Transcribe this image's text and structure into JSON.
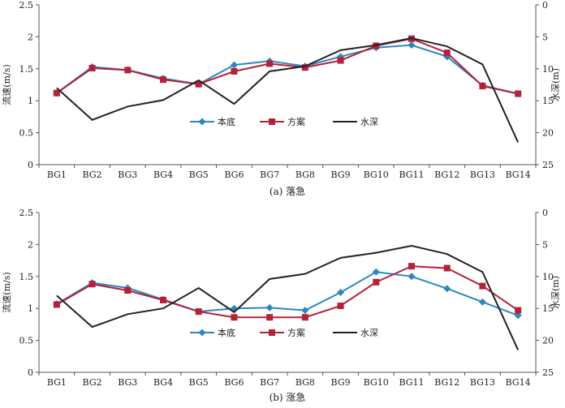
{
  "chart_data": [
    {
      "type": "line",
      "caption": "(a) 落急",
      "categories": [
        "BG1",
        "BG2",
        "BG3",
        "BG4",
        "BG5",
        "BG6",
        "BG7",
        "BG8",
        "BG9",
        "BG10",
        "BG11",
        "BG12",
        "BG13",
        "BG14"
      ],
      "ylabel": "流速(m/s)",
      "y2label": "水深(m)",
      "ylim": [
        0,
        2.5
      ],
      "yticks": [
        "0",
        "0.5",
        "1",
        "1.5",
        "2",
        "2.5"
      ],
      "y2lim": [
        0,
        25
      ],
      "y2_inverted": true,
      "y2ticks": [
        "0",
        "5",
        "10",
        "15",
        "20",
        "25"
      ],
      "grid": false,
      "legend_position": "bottom-center",
      "series": [
        {
          "name": "本底",
          "axis": "left",
          "color": "#2e86c1",
          "marker": "diamond",
          "values": [
            1.12,
            1.53,
            1.48,
            1.35,
            1.26,
            1.56,
            1.62,
            1.54,
            1.69,
            1.83,
            1.87,
            1.69,
            1.24,
            1.11
          ]
        },
        {
          "name": "方案",
          "axis": "left",
          "color": "#b5203a",
          "marker": "square",
          "values": [
            1.12,
            1.51,
            1.48,
            1.33,
            1.26,
            1.46,
            1.58,
            1.52,
            1.63,
            1.86,
            1.97,
            1.75,
            1.23,
            1.11
          ]
        },
        {
          "name": "水深",
          "axis": "right",
          "color": "#222222",
          "marker": "none",
          "values": [
            13.0,
            18.0,
            15.9,
            14.9,
            11.8,
            15.5,
            10.4,
            9.6,
            7.1,
            6.3,
            5.2,
            6.5,
            9.3,
            21.5
          ]
        }
      ]
    },
    {
      "type": "line",
      "caption": "(b) 涨急",
      "categories": [
        "BG1",
        "BG2",
        "BG3",
        "BG4",
        "BG5",
        "BG6",
        "BG7",
        "BG8",
        "BG9",
        "BG10",
        "BG11",
        "BG12",
        "BG13",
        "BG14"
      ],
      "ylabel": "流速(m/s)",
      "y2label": "水深(m)",
      "ylim": [
        0,
        2.5
      ],
      "yticks": [
        "0",
        "0.5",
        "1",
        "1.5",
        "2",
        "2.5"
      ],
      "y2lim": [
        0,
        25
      ],
      "y2_inverted": true,
      "y2ticks": [
        "0",
        "5",
        "10",
        "15",
        "20",
        "25"
      ],
      "grid": false,
      "legend_position": "bottom-center",
      "series": [
        {
          "name": "本底",
          "axis": "left",
          "color": "#2e86c1",
          "marker": "diamond",
          "values": [
            1.07,
            1.4,
            1.32,
            1.14,
            0.95,
            1.0,
            1.01,
            0.97,
            1.25,
            1.57,
            1.5,
            1.31,
            1.1,
            0.89
          ]
        },
        {
          "name": "方案",
          "axis": "left",
          "color": "#b5203a",
          "marker": "square",
          "values": [
            1.06,
            1.38,
            1.28,
            1.13,
            0.95,
            0.86,
            0.86,
            0.86,
            1.04,
            1.41,
            1.66,
            1.63,
            1.35,
            0.97
          ]
        },
        {
          "name": "水深",
          "axis": "right",
          "color": "#222222",
          "marker": "none",
          "values": [
            13.0,
            17.9,
            15.9,
            15.0,
            11.8,
            15.6,
            10.4,
            9.6,
            7.1,
            6.3,
            5.2,
            6.5,
            9.3,
            21.5
          ]
        }
      ]
    }
  ]
}
